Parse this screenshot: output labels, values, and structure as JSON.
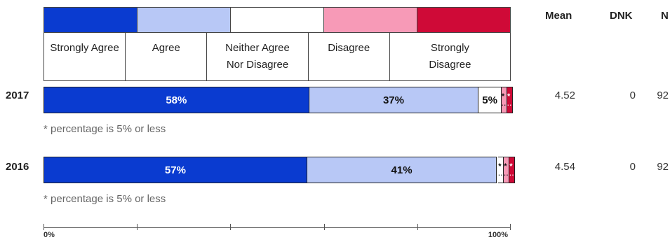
{
  "legend": [
    {
      "label": "Strongly Agree",
      "color": "#0a3bd0"
    },
    {
      "label": "Agree",
      "color": "#b8c8f6"
    },
    {
      "label": "Neither Agree Nor Disagree",
      "color": "#ffffff"
    },
    {
      "label": "Disagree",
      "color": "#f79ab7"
    },
    {
      "label": "Strongly Disagree",
      "color": "#cf0a37"
    }
  ],
  "columns": {
    "mean": "Mean",
    "dnk": "DNK",
    "n": "N"
  },
  "footnote": "* percentage is 5% or less",
  "axis": {
    "start_label": "0%",
    "end_label": "100%"
  },
  "chart_data": {
    "type": "bar",
    "orientation": "horizontal",
    "stacked": true,
    "categories": [
      "2017",
      "2016"
    ],
    "series": [
      {
        "name": "Strongly Agree",
        "values": [
          58,
          57
        ]
      },
      {
        "name": "Agree",
        "values": [
          37,
          41
        ]
      },
      {
        "name": "Neither Agree Nor Disagree",
        "values": [
          5,
          1
        ]
      },
      {
        "name": "Disagree",
        "values": [
          1,
          1
        ]
      },
      {
        "name": "Strongly Disagree",
        "values": [
          1,
          1
        ]
      }
    ],
    "segment_labels": [
      [
        "58%",
        "37%",
        "5%",
        "*",
        "*"
      ],
      [
        "57%",
        "41%",
        "*",
        "*",
        "*"
      ]
    ],
    "stats": [
      {
        "year": "2017",
        "mean": "4.52",
        "dnk": "0",
        "n": "92"
      },
      {
        "year": "2016",
        "mean": "4.54",
        "dnk": "0",
        "n": "92"
      }
    ],
    "xlim": [
      0,
      100
    ]
  }
}
